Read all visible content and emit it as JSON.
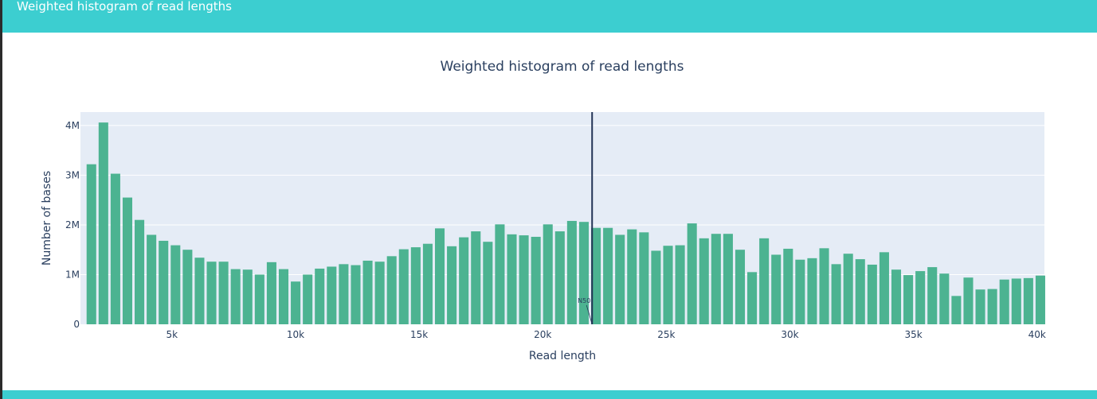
{
  "header": {
    "title": "Weighted histogram of read lengths"
  },
  "colors": {
    "header": "#3cced0",
    "bar": "#4cb391",
    "plot_bg": "#e5ecf6",
    "text": "#2a3f5f",
    "n50_line": "#223355"
  },
  "chart_data": {
    "type": "bar",
    "title": "Weighted histogram of read lengths",
    "xlabel": "Read length",
    "ylabel": "Number of bases",
    "xlim": [
      1300,
      40300
    ],
    "ylim": [
      0,
      4270000
    ],
    "x_ticks": [
      {
        "value": 5000,
        "label": "5k"
      },
      {
        "value": 10000,
        "label": "10k"
      },
      {
        "value": 15000,
        "label": "15k"
      },
      {
        "value": 20000,
        "label": "20k"
      },
      {
        "value": 25000,
        "label": "25k"
      },
      {
        "value": 30000,
        "label": "30k"
      },
      {
        "value": 35000,
        "label": "35k"
      },
      {
        "value": 40000,
        "label": "40k"
      }
    ],
    "y_ticks": [
      {
        "value": 0,
        "label": "0"
      },
      {
        "value": 1000000,
        "label": "1M"
      },
      {
        "value": 2000000,
        "label": "2M"
      },
      {
        "value": 3000000,
        "label": "3M"
      },
      {
        "value": 4000000,
        "label": "4M"
      }
    ],
    "bin_start": 1500,
    "bin_width": 486,
    "values": [
      3220000,
      4060000,
      3030000,
      2550000,
      2100000,
      1800000,
      1680000,
      1590000,
      1500000,
      1340000,
      1260000,
      1260000,
      1110000,
      1100000,
      1000000,
      1250000,
      1110000,
      860000,
      1000000,
      1120000,
      1160000,
      1210000,
      1190000,
      1280000,
      1260000,
      1370000,
      1510000,
      1550000,
      1620000,
      1930000,
      1570000,
      1750000,
      1870000,
      1660000,
      2010000,
      1810000,
      1790000,
      1760000,
      2010000,
      1870000,
      2080000,
      2060000,
      1940000,
      1940000,
      1800000,
      1910000,
      1850000,
      1480000,
      1580000,
      1590000,
      2030000,
      1730000,
      1820000,
      1820000,
      1500000,
      1050000,
      1730000,
      1400000,
      1520000,
      1300000,
      1330000,
      1530000,
      1210000,
      1420000,
      1310000,
      1200000,
      1450000,
      1100000,
      990000,
      1070000,
      1150000,
      1020000,
      570000,
      940000,
      700000,
      710000,
      900000,
      920000,
      930000,
      980000
    ],
    "n50": {
      "value": 22000,
      "label": "N50"
    },
    "grid": true,
    "legend": "none"
  }
}
